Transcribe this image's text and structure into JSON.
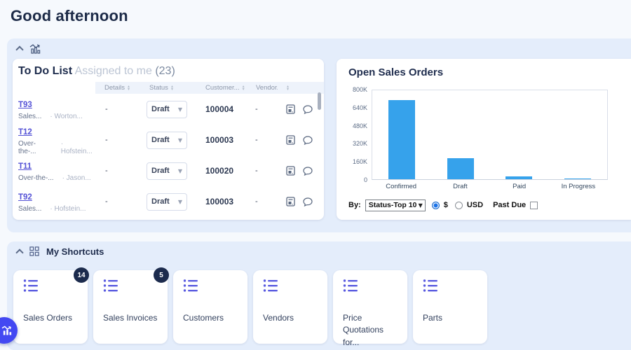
{
  "page": {
    "greeting": "Good afternoon"
  },
  "colors": {
    "bar": "#36a2eb",
    "link": "#5553d6",
    "badge": "#1c2b4d",
    "shortcut_icon": "#5a5be0",
    "fab": "#4348f2",
    "section_bg": "#e4edfb"
  },
  "todo": {
    "title": "To Do List",
    "subtitle": "Assigned to me",
    "count": "(23)",
    "columns": {
      "details": "Details",
      "status": "Status",
      "customer": "Customer...",
      "vendor": "Vendor..."
    },
    "rows": [
      {
        "id": "T93",
        "type": "Sales...",
        "assignee": "· Worton...",
        "details": "-",
        "status": "Draft",
        "customer": "100004",
        "vendor": "-"
      },
      {
        "id": "T12",
        "type": "Over-the-...",
        "assignee": "· Hofstein...",
        "details": "-",
        "status": "Draft",
        "customer": "100003",
        "vendor": "-"
      },
      {
        "id": "T11",
        "type": "Over-the-...",
        "assignee": "· Jason...",
        "details": "-",
        "status": "Draft",
        "customer": "100020",
        "vendor": "-"
      },
      {
        "id": "T92",
        "type": "Sales...",
        "assignee": "· Hofstein...",
        "details": "-",
        "status": "Draft",
        "customer": "100003",
        "vendor": "-"
      }
    ]
  },
  "sales_orders": {
    "title": "Open Sales Orders",
    "controls": {
      "by_label": "By:",
      "by_value": "Status-Top 10",
      "currency_symbol": "$",
      "currency_code": "USD",
      "past_due_label": "Past Due"
    }
  },
  "chart_data": {
    "type": "bar",
    "title": "Open Sales Orders",
    "categories": [
      "Confirmed",
      "Draft",
      "Paid",
      "In Progress"
    ],
    "values": [
      715000,
      190000,
      25000,
      6000
    ],
    "ylim": [
      0,
      800000
    ],
    "yticks": [
      "800K",
      "640K",
      "480K",
      "320K",
      "160K",
      "0"
    ],
    "bar_color": "#36a2eb",
    "grid": false,
    "legend": "none"
  },
  "shortcuts": {
    "title": "My Shortcuts",
    "items": [
      {
        "label": "Sales Orders",
        "badge": "14"
      },
      {
        "label": "Sales Invoices",
        "badge": "5"
      },
      {
        "label": "Customers"
      },
      {
        "label": "Vendors"
      },
      {
        "label": "Price Quotations for..."
      },
      {
        "label": "Parts"
      }
    ]
  }
}
